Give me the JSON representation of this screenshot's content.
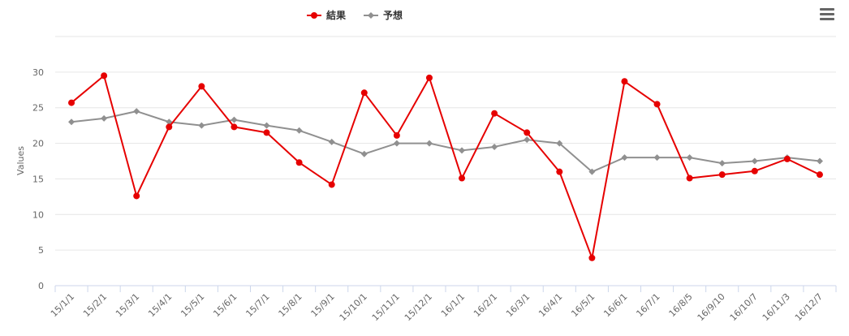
{
  "colors": {
    "result": "#e60000",
    "forecast": "#909090",
    "grid": "#e6e6e6",
    "axis": "#ccd6eb"
  },
  "icons": {
    "menu": "hamburger-menu-icon"
  },
  "chart_data": {
    "type": "line",
    "ylabel": "Values",
    "ylim": [
      0,
      35
    ],
    "yticks": [
      0,
      5,
      10,
      15,
      20,
      25,
      30
    ],
    "grid": true,
    "legend_position": "top-center",
    "categories": [
      "15/1/1",
      "15/2/1",
      "15/3/1",
      "15/4/1",
      "15/5/1",
      "15/6/1",
      "15/7/1",
      "15/8/1",
      "15/9/1",
      "15/10/1",
      "15/11/1",
      "15/12/1",
      "16/1/1",
      "16/2/1",
      "16/3/1",
      "16/4/1",
      "16/5/1",
      "16/6/1",
      "16/7/1",
      "16/8/5",
      "16/9/10",
      "16/10/7",
      "16/11/3",
      "16/12/7"
    ],
    "series": [
      {
        "name": "結果",
        "marker": "circle",
        "values": [
          25.7,
          29.5,
          12.6,
          22.3,
          28.0,
          22.3,
          21.5,
          17.3,
          14.2,
          27.1,
          21.1,
          29.2,
          15.1,
          24.2,
          21.5,
          16.0,
          3.9,
          28.7,
          25.5,
          15.1,
          15.6,
          16.1,
          17.8,
          15.6
        ]
      },
      {
        "name": "予想",
        "marker": "diamond",
        "values": [
          23.0,
          23.5,
          24.5,
          23.0,
          22.5,
          23.3,
          22.5,
          21.8,
          20.2,
          18.5,
          20.0,
          20.0,
          19.0,
          19.5,
          20.5,
          20.0,
          16.0,
          18.0,
          18.0,
          18.0,
          17.2,
          17.5,
          18.0,
          17.5
        ]
      }
    ]
  }
}
